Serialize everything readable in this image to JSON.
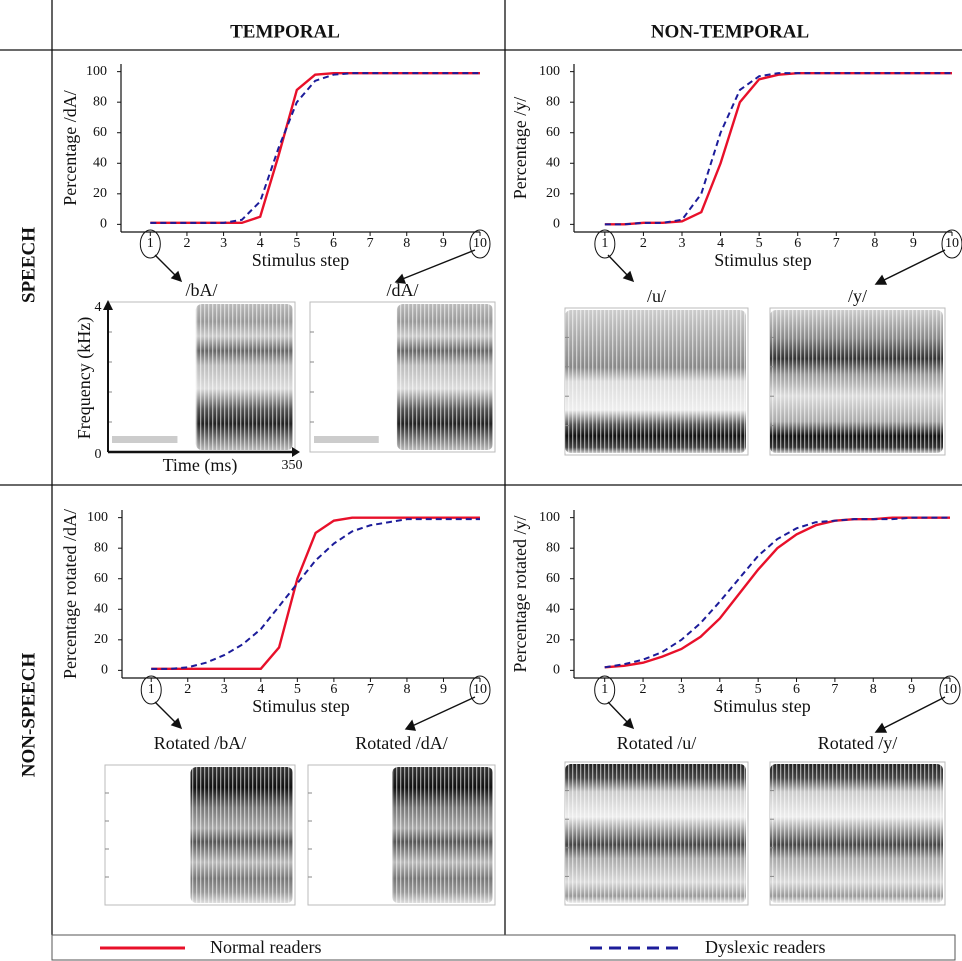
{
  "columns": [
    "TEMPORAL",
    "NON-TEMPORAL"
  ],
  "rows": [
    "SPEECH",
    "NON-SPEECH"
  ],
  "chart_data": [
    {
      "type": "line",
      "y_label": "Percentage  /dA/",
      "x_label": "Stimulus step",
      "x": [
        1,
        1.5,
        2,
        2.5,
        3,
        3.5,
        4,
        4.5,
        5,
        5.5,
        6,
        6.5,
        7,
        7.5,
        8,
        8.5,
        9,
        9.5,
        10
      ],
      "series": [
        {
          "name": "Normal readers",
          "color": "#e8102a",
          "linestyle": "solid",
          "values": [
            1,
            1,
            1,
            1,
            1,
            1,
            5,
            45,
            88,
            98,
            99,
            99,
            99,
            99,
            99,
            99,
            99,
            99,
            99
          ]
        },
        {
          "name": "Dyslexic readers",
          "color": "#1c1c9a",
          "linestyle": "dashed",
          "values": [
            1,
            1,
            1,
            1,
            1,
            3,
            15,
            50,
            80,
            94,
            98,
            99,
            99,
            99,
            99,
            99,
            99,
            99,
            99
          ]
        }
      ],
      "xlim": [
        0.2,
        10
      ],
      "ylim": [
        -5,
        105
      ],
      "xticks": [
        1,
        2,
        3,
        4,
        5,
        6,
        7,
        8,
        9,
        10
      ],
      "yticks": [
        0,
        20,
        40,
        60,
        80,
        100
      ]
    },
    {
      "type": "line",
      "y_label": "Percentage  /y/",
      "x_label": "Stimulus step",
      "x": [
        1,
        1.5,
        2,
        2.5,
        3,
        3.5,
        4,
        4.5,
        5,
        5.5,
        6,
        6.5,
        7,
        7.5,
        8,
        8.5,
        9,
        9.5,
        10
      ],
      "series": [
        {
          "color": "#e8102a",
          "linestyle": "solid",
          "values": [
            0,
            0,
            1,
            1,
            2,
            8,
            40,
            80,
            95,
            98,
            99,
            99,
            99,
            99,
            99,
            99,
            99,
            99,
            99
          ]
        },
        {
          "color": "#1c1c9a",
          "linestyle": "dashed",
          "values": [
            0,
            0,
            1,
            1,
            3,
            20,
            60,
            88,
            97,
            99,
            99,
            99,
            99,
            99,
            99,
            99,
            99,
            99,
            99
          ]
        }
      ],
      "xlim": [
        0.2,
        10
      ],
      "ylim": [
        -5,
        105
      ],
      "xticks": [
        1,
        2,
        3,
        4,
        5,
        6,
        7,
        8,
        9,
        10
      ],
      "yticks": [
        0,
        20,
        40,
        60,
        80,
        100
      ]
    },
    {
      "type": "line",
      "y_label": "Percentage  rotated /dA/",
      "x_label": "Stimulus step",
      "x": [
        1,
        1.5,
        2,
        2.5,
        3,
        3.5,
        4,
        4.5,
        5,
        5.5,
        6,
        6.5,
        7,
        7.5,
        8,
        8.5,
        9,
        9.5,
        10
      ],
      "series": [
        {
          "color": "#e8102a",
          "linestyle": "solid",
          "values": [
            1,
            1,
            1,
            1,
            1,
            1,
            1,
            15,
            60,
            90,
            98,
            100,
            100,
            100,
            100,
            100,
            100,
            100,
            100
          ]
        },
        {
          "color": "#1c1c9a",
          "linestyle": "dashed",
          "values": [
            1,
            1,
            2,
            5,
            10,
            17,
            27,
            42,
            57,
            72,
            83,
            91,
            95,
            97,
            99,
            99,
            99,
            99,
            99
          ]
        }
      ],
      "xlim": [
        0.2,
        10
      ],
      "ylim": [
        -5,
        105
      ],
      "xticks": [
        1,
        2,
        3,
        4,
        5,
        6,
        7,
        8,
        9,
        10
      ],
      "yticks": [
        0,
        20,
        40,
        60,
        80,
        100
      ]
    },
    {
      "type": "line",
      "y_label": "Percentage rotated /y/",
      "x_label": "Stimulus step",
      "x": [
        1,
        1.5,
        2,
        2.5,
        3,
        3.5,
        4,
        4.5,
        5,
        5.5,
        6,
        6.5,
        7,
        7.5,
        8,
        8.5,
        9,
        9.5,
        10
      ],
      "series": [
        {
          "color": "#e8102a",
          "linestyle": "solid",
          "values": [
            2,
            3,
            5,
            9,
            14,
            22,
            34,
            50,
            66,
            80,
            89,
            95,
            98,
            99,
            99,
            100,
            100,
            100,
            100
          ]
        },
        {
          "color": "#1c1c9a",
          "linestyle": "dashed",
          "values": [
            2,
            4,
            7,
            12,
            20,
            31,
            45,
            60,
            75,
            86,
            93,
            97,
            98,
            99,
            99,
            99,
            100,
            100,
            100
          ]
        }
      ],
      "xlim": [
        0.2,
        10
      ],
      "ylim": [
        -5,
        105
      ],
      "xticks": [
        1,
        2,
        3,
        4,
        5,
        6,
        7,
        8,
        9,
        10
      ],
      "yticks": [
        0,
        20,
        40,
        60,
        80,
        100
      ]
    }
  ],
  "spectrograms": [
    {
      "title": "/bA/"
    },
    {
      "title": "/dA/"
    },
    {
      "title": "/u/"
    },
    {
      "title": "/y/"
    },
    {
      "title": "Rotated /bA/"
    },
    {
      "title": "Rotated /dA/"
    },
    {
      "title": "Rotated /u/"
    },
    {
      "title": "Rotated /y/"
    }
  ],
  "spectrogram_axes": {
    "y_label": "Frequency (kHz)",
    "x_label": "Time (ms)",
    "y_top": "4",
    "y_bottom": "0",
    "x_end": "350"
  }
}
